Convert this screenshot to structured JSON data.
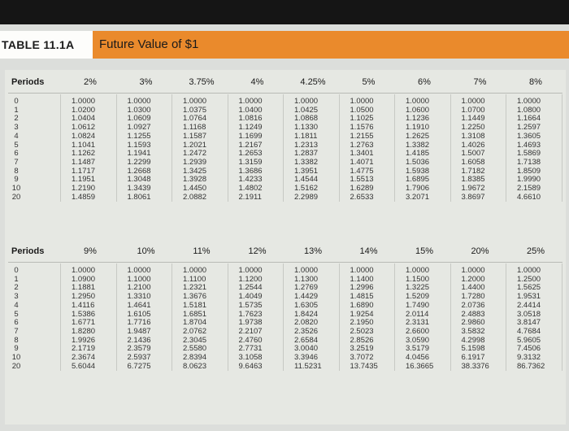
{
  "table_label": "TABLE 11.1A",
  "table_title": "Future Value of $1",
  "sections": [
    {
      "periods_label": "Periods",
      "rates": [
        "2%",
        "3%",
        "3.75%",
        "4%",
        "4.25%",
        "5%",
        "6%",
        "7%",
        "8%"
      ],
      "periods": [
        "0",
        "1",
        "2",
        "3",
        "4",
        "5",
        "6",
        "7",
        "8",
        "9",
        "10",
        "20"
      ],
      "columns": [
        [
          "1.0000",
          "1.0200",
          "1.0404",
          "1.0612",
          "1.0824",
          "1.1041",
          "1.1262",
          "1.1487",
          "1.1717",
          "1.1951",
          "1.2190",
          "1.4859"
        ],
        [
          "1.0000",
          "1.0300",
          "1.0609",
          "1.0927",
          "1.1255",
          "1.1593",
          "1.1941",
          "1.2299",
          "1.2668",
          "1.3048",
          "1.3439",
          "1.8061"
        ],
        [
          "1.0000",
          "1.0375",
          "1.0764",
          "1.1168",
          "1.1587",
          "1.2021",
          "1.2472",
          "1.2939",
          "1.3425",
          "1.3928",
          "1.4450",
          "2.0882"
        ],
        [
          "1.0000",
          "1.0400",
          "1.0816",
          "1.1249",
          "1.1699",
          "1.2167",
          "1.2653",
          "1.3159",
          "1.3686",
          "1.4233",
          "1.4802",
          "2.1911"
        ],
        [
          "1.0000",
          "1.0425",
          "1.0868",
          "1.1330",
          "1.1811",
          "1.2313",
          "1.2837",
          "1.3382",
          "1.3951",
          "1.4544",
          "1.5162",
          "2.2989"
        ],
        [
          "1.0000",
          "1.0500",
          "1.1025",
          "1.1576",
          "1.2155",
          "1.2763",
          "1.3401",
          "1.4071",
          "1.4775",
          "1.5513",
          "1.6289",
          "2.6533"
        ],
        [
          "1.0000",
          "1.0600",
          "1.1236",
          "1.1910",
          "1.2625",
          "1.3382",
          "1.4185",
          "1.5036",
          "1.5938",
          "1.6895",
          "1.7906",
          "3.2071"
        ],
        [
          "1.0000",
          "1.0700",
          "1.1449",
          "1.2250",
          "1.3108",
          "1.4026",
          "1.5007",
          "1.6058",
          "1.7182",
          "1.8385",
          "1.9672",
          "3.8697"
        ],
        [
          "1.0000",
          "1.0800",
          "1.1664",
          "1.2597",
          "1.3605",
          "1.4693",
          "1.5869",
          "1.7138",
          "1.8509",
          "1.9990",
          "2.1589",
          "4.6610"
        ]
      ]
    },
    {
      "periods_label": "Periods",
      "rates": [
        "9%",
        "10%",
        "11%",
        "12%",
        "13%",
        "14%",
        "15%",
        "20%",
        "25%"
      ],
      "periods": [
        "0",
        "1",
        "2",
        "3",
        "4",
        "5",
        "6",
        "7",
        "8",
        "9",
        "10",
        "20"
      ],
      "columns": [
        [
          "1.0000",
          "1.0900",
          "1.1881",
          "1.2950",
          "1.4116",
          "1.5386",
          "1.6771",
          "1.8280",
          "1.9926",
          "2.1719",
          "2.3674",
          "5.6044"
        ],
        [
          "1.0000",
          "1.1000",
          "1.2100",
          "1.3310",
          "1.4641",
          "1.6105",
          "1.7716",
          "1.9487",
          "2.1436",
          "2.3579",
          "2.5937",
          "6.7275"
        ],
        [
          "1.0000",
          "1.1100",
          "1.2321",
          "1.3676",
          "1.5181",
          "1.6851",
          "1.8704",
          "2.0762",
          "2.3045",
          "2.5580",
          "2.8394",
          "8.0623"
        ],
        [
          "1.0000",
          "1.1200",
          "1.2544",
          "1.4049",
          "1.5735",
          "1.7623",
          "1.9738",
          "2.2107",
          "2.4760",
          "2.7731",
          "3.1058",
          "9.6463"
        ],
        [
          "1.0000",
          "1.1300",
          "1.2769",
          "1.4429",
          "1.6305",
          "1.8424",
          "2.0820",
          "2.3526",
          "2.6584",
          "3.0040",
          "3.3946",
          "11.5231"
        ],
        [
          "1.0000",
          "1.1400",
          "1.2996",
          "1.4815",
          "1.6890",
          "1.9254",
          "2.1950",
          "2.5023",
          "2.8526",
          "3.2519",
          "3.7072",
          "13.7435"
        ],
        [
          "1.0000",
          "1.1500",
          "1.3225",
          "1.5209",
          "1.7490",
          "2.0114",
          "2.3131",
          "2.6600",
          "3.0590",
          "3.5179",
          "4.0456",
          "16.3665"
        ],
        [
          "1.0000",
          "1.2000",
          "1.4400",
          "1.7280",
          "2.0736",
          "2.4883",
          "2.9860",
          "3.5832",
          "4.2998",
          "5.1598",
          "6.1917",
          "38.3376"
        ],
        [
          "1.0000",
          "1.2500",
          "1.5625",
          "1.9531",
          "2.4414",
          "3.0518",
          "3.8147",
          "4.7684",
          "5.9605",
          "7.4506",
          "9.3132",
          "86.7362"
        ]
      ]
    }
  ]
}
